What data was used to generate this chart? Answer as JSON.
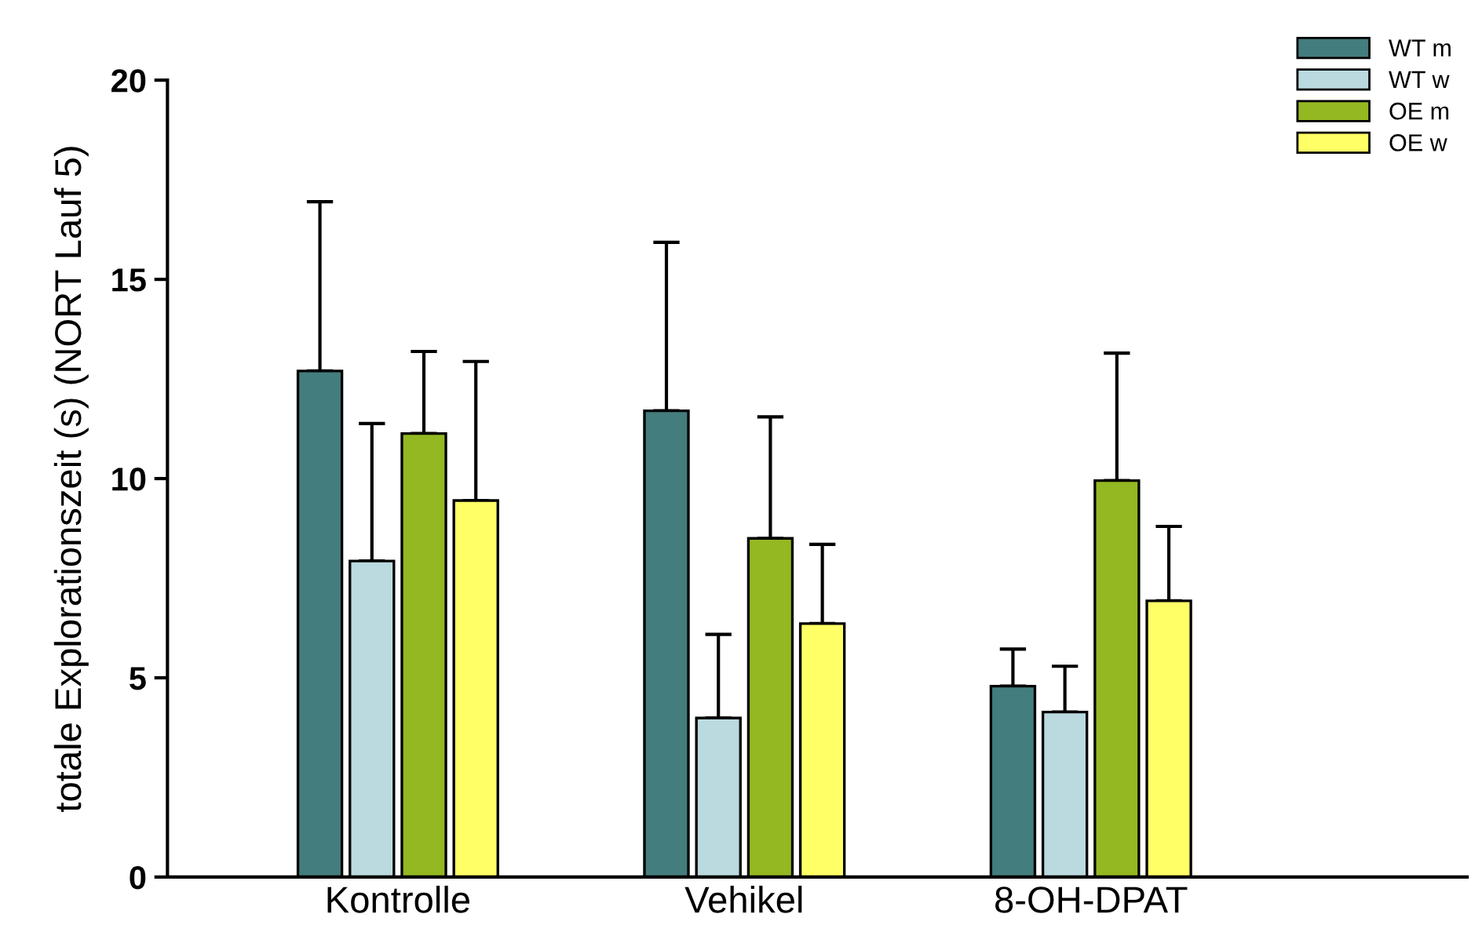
{
  "chart_data": {
    "type": "bar",
    "ylabel": "totale Explorationszeit (s) (NORT Lauf 5)",
    "categories": [
      "Kontrolle",
      "Vehikel",
      "8-OH-DPAT"
    ],
    "series": [
      {
        "name": "WT m",
        "color": "#447d7d",
        "values": [
          12.7,
          11.7,
          4.79
        ],
        "errors": [
          [
            12.7,
            16.95
          ],
          [
            11.7,
            15.93
          ],
          [
            4.79,
            5.72
          ]
        ]
      },
      {
        "name": "WT w",
        "color": "#badadf",
        "values": [
          7.93,
          3.99,
          4.14
        ],
        "errors": [
          [
            7.93,
            11.38
          ],
          [
            3.99,
            6.09
          ],
          [
            4.14,
            5.29
          ]
        ]
      },
      {
        "name": "OE m",
        "color": "#94b821",
        "values": [
          11.13,
          8.5,
          9.95
        ],
        "errors": [
          [
            11.13,
            13.19
          ],
          [
            8.5,
            11.55
          ],
          [
            9.95,
            13.15
          ]
        ]
      },
      {
        "name": "OE w",
        "color": "#ffff66",
        "values": [
          9.45,
          6.36,
          6.93
        ],
        "errors": [
          [
            9.45,
            12.94
          ],
          [
            6.36,
            8.35
          ],
          [
            6.93,
            8.8
          ]
        ]
      }
    ],
    "ylim": [
      0,
      20
    ],
    "yticks": [
      0,
      5,
      10,
      15,
      20
    ],
    "grid": false,
    "legend": "top right"
  }
}
